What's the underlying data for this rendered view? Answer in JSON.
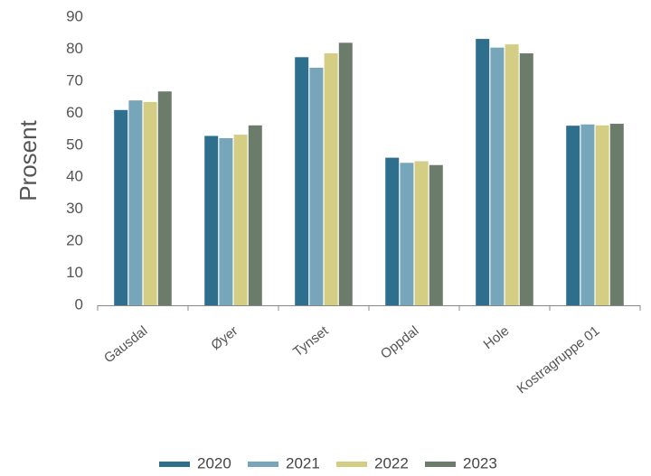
{
  "chart_data": {
    "type": "bar",
    "title": "",
    "xlabel": "",
    "ylabel": "Prosent",
    "ylim": [
      0,
      90
    ],
    "yticks": [
      0,
      10,
      20,
      30,
      40,
      50,
      60,
      70,
      80,
      90
    ],
    "grid": false,
    "legend_position": "bottom",
    "categories": [
      "Gausdal",
      "Øyer",
      "Tynset",
      "Oppdal",
      "Hole",
      "Kostragruppe 01"
    ],
    "series": [
      {
        "name": "2020",
        "color": "#2e6f8e",
        "values": [
          61.0,
          52.9,
          77.5,
          46.1,
          83.2,
          56.1
        ]
      },
      {
        "name": "2021",
        "color": "#77a6ba",
        "values": [
          64.0,
          52.2,
          74.2,
          44.5,
          80.5,
          56.5
        ]
      },
      {
        "name": "2022",
        "color": "#d4ce84",
        "values": [
          63.5,
          53.3,
          78.7,
          45.0,
          81.5,
          56.2
        ]
      },
      {
        "name": "2023",
        "color": "#6c7c6a",
        "values": [
          66.8,
          56.2,
          82.0,
          43.8,
          78.7,
          56.7
        ]
      }
    ]
  }
}
